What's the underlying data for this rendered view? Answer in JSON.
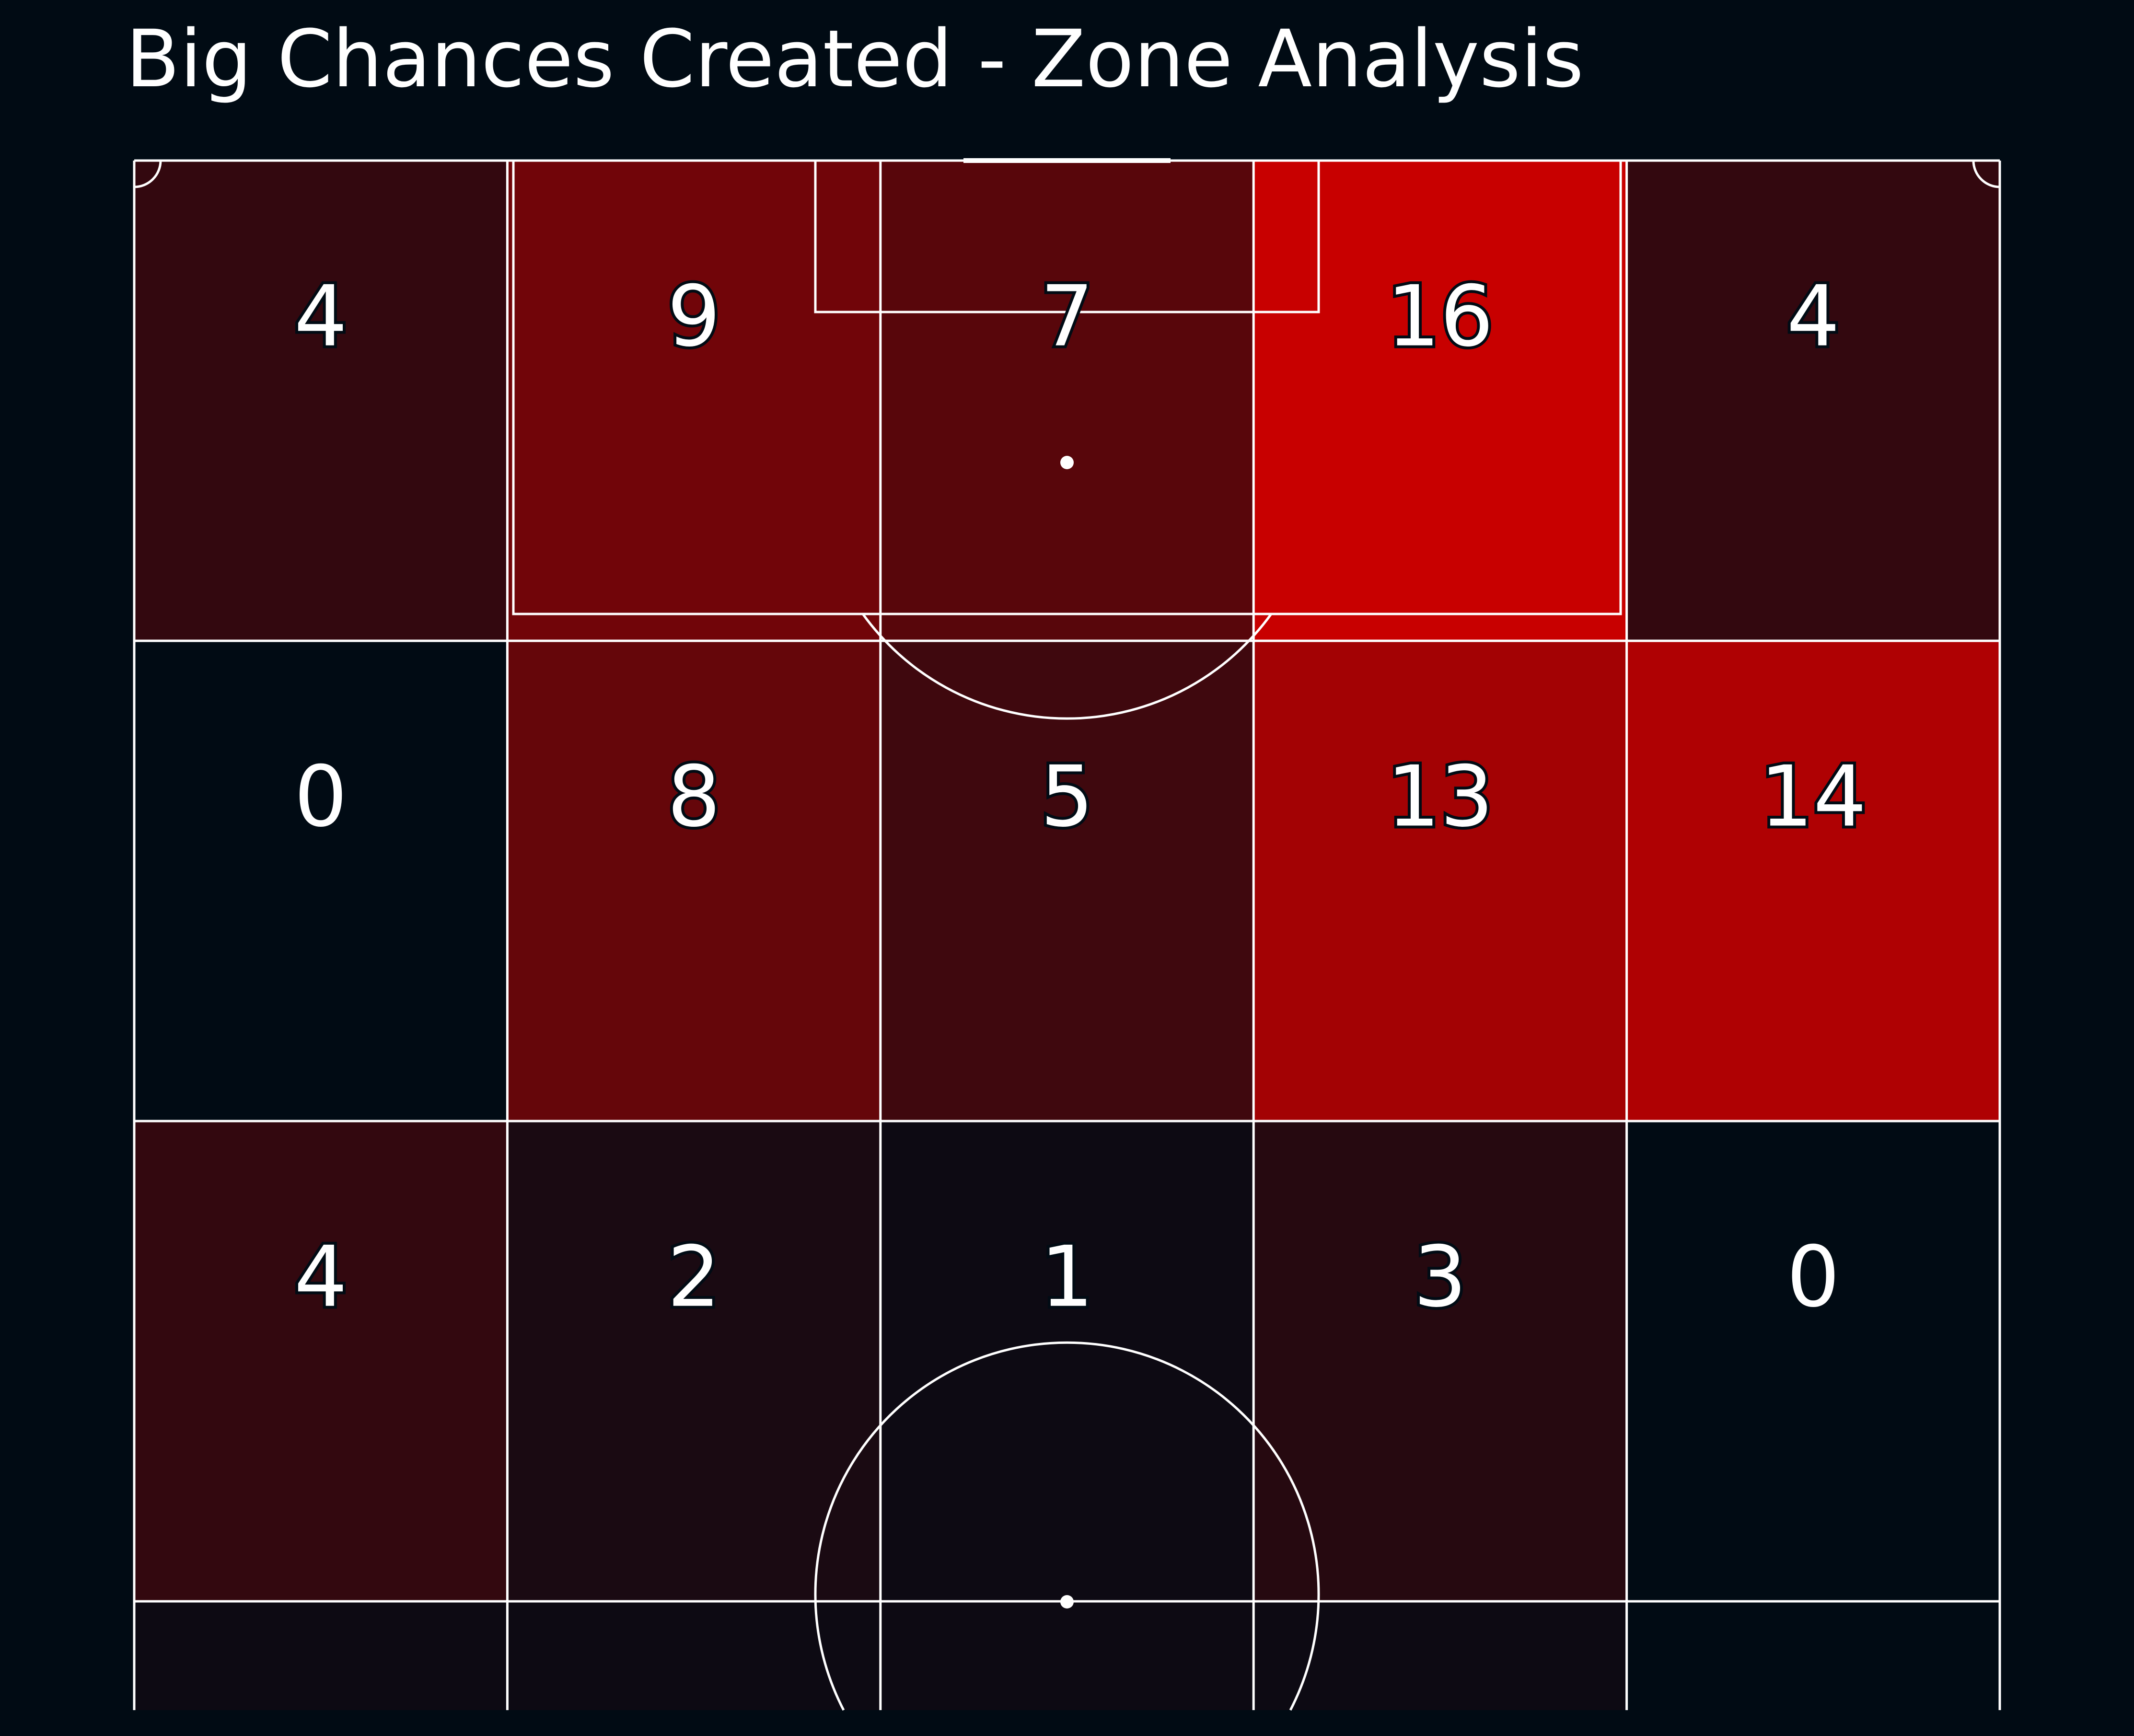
{
  "title": "Big Chances Created - Zone Analysis",
  "colors": {
    "background": "#010b14",
    "low": "#010b14",
    "high": "#c80000",
    "lines": "#ffffff"
  },
  "chart_data": {
    "type": "heatmap",
    "title": "Big Chances Created - Zone Analysis",
    "orientation": "vertical half-pitch, attacking goal at top",
    "grid": {
      "rows": 3,
      "cols": 5
    },
    "values": [
      [
        4,
        9,
        7,
        16,
        4
      ],
      [
        0,
        8,
        5,
        13,
        14
      ],
      [
        4,
        2,
        1,
        3,
        0
      ]
    ],
    "vmin": 0,
    "vmax": 16
  }
}
